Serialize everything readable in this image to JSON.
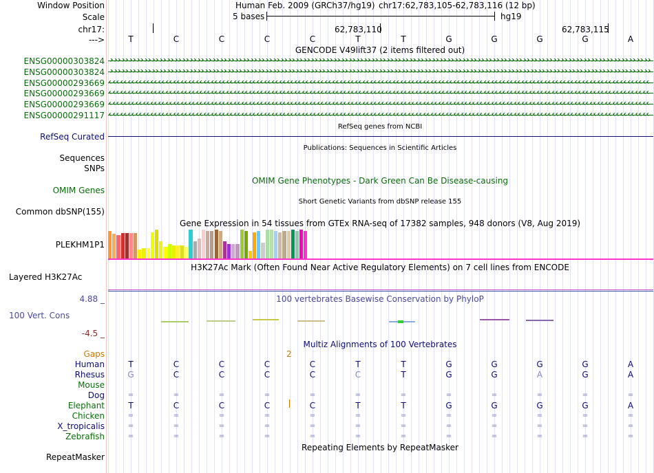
{
  "header": {
    "window_position_label": "Window Position",
    "scale_label": "Scale",
    "chrom_label": "chr17:",
    "arrow_label": "--->",
    "assembly": "Human Feb. 2009 (GRCh37/hg19)",
    "position": "chr17:62,783,105-62,783,116 (12 bp)",
    "scale_text": "5 bases",
    "scale_db": "hg19",
    "coord_1": "62,783,110",
    "coord_2": "62,783,115"
  },
  "sequence": [
    "T",
    "C",
    "C",
    "C",
    "C",
    "T",
    "T",
    "G",
    "G",
    "G",
    "G",
    "A"
  ],
  "gencode": {
    "title": "GENCODE V49lift37 (2 items filtered out)",
    "genes": [
      {
        "id": "ENSG00000303824",
        "strand": "+"
      },
      {
        "id": "ENSG00000303824",
        "strand": "+"
      },
      {
        "id": "ENSG00000293669",
        "strand": "-"
      },
      {
        "id": "ENSG00000293669",
        "strand": "-"
      },
      {
        "id": "ENSG00000293669",
        "strand": "-"
      },
      {
        "id": "ENSG00000291117",
        "strand": "-"
      }
    ]
  },
  "tracks": {
    "refseq_title": "RefSeq genes from NCBI",
    "refseq_label": "RefSeq Curated",
    "publications_title": "Publications: Sequences in Scientific Articles",
    "sequences_label": "Sequences",
    "snps_label": "SNPs",
    "omim_title": "OMIM Gene Phenotypes - Dark Green Can Be Disease-causing",
    "omim_label": "OMIM Genes",
    "dbsnp_title": "Short Genetic Variants from dbSNP release 155",
    "dbsnp_label": "Common dbSNP(155)",
    "gtex_title": "Gene Expression in 54 tissues from GTEx RNA-seq of 17382 samples, 948 donors (V8, Aug 2019)",
    "gtex_label": "PLEKHM1P1",
    "h3k27_title": "H3K27Ac Mark (Often Found Near Active Regulatory Elements) on 7 cell lines from ENCODE",
    "h3k27_label": "Layered H3K27Ac",
    "phylop_title": "100 vertebrates Basewise Conservation by PhyloP",
    "phylop_label": "100 Vert. Cons",
    "phylop_max": "4.88 _",
    "phylop_min": "-4.5 _",
    "multiz_title": "Multiz Alignments of 100 Vertebrates",
    "gaps_label": "Gaps",
    "gaps_value": "2",
    "repeat_title": "Repeating Elements by RepeatMasker",
    "repeat_label": "RepeatMasker"
  },
  "gtex_bars": [
    {
      "color": "#ff9933",
      "level": 0.95
    },
    {
      "color": "#ffaa55",
      "level": 0.85
    },
    {
      "color": "#ff6666",
      "level": 0.8
    },
    {
      "color": "#cc3333",
      "level": 0.88
    },
    {
      "color": "#993333",
      "level": 0.88
    },
    {
      "color": "#ff8888",
      "level": 0.88
    },
    {
      "color": "#cc9966",
      "level": 0.88
    },
    {
      "color": "#ffee00",
      "level": 0.3
    },
    {
      "color": "#eeee00",
      "level": 0.35
    },
    {
      "color": "#ffff33",
      "level": 0.35
    },
    {
      "color": "#eeff00",
      "level": 0.9
    },
    {
      "color": "#dddd00",
      "level": 1.0
    },
    {
      "color": "#eeee22",
      "level": 0.6
    },
    {
      "color": "#ffff00",
      "level": 0.4
    },
    {
      "color": "#ccff00",
      "level": 0.5
    },
    {
      "color": "#eeee00",
      "level": 0.45
    },
    {
      "color": "#ffee33",
      "level": 0.45
    },
    {
      "color": "#dddd22",
      "level": 0.45
    },
    {
      "color": "#ffff66",
      "level": 0.4
    },
    {
      "color": "#33cccc",
      "level": 1.0
    },
    {
      "color": "#aaaaaa",
      "level": 0.6
    },
    {
      "color": "#ddbbbb",
      "level": 0.7
    },
    {
      "color": "#ffcccc",
      "level": 1.0
    },
    {
      "color": "#ccaa99",
      "level": 0.95
    },
    {
      "color": "#bb9988",
      "level": 0.95
    },
    {
      "color": "#996633",
      "level": 1.0
    },
    {
      "color": "#ccaa88",
      "level": 0.95
    },
    {
      "color": "#aa3399",
      "level": 0.6
    },
    {
      "color": "#9933cc",
      "level": 0.5
    },
    {
      "color": "#ccaacc",
      "level": 0.5
    },
    {
      "color": "#bb99bb",
      "level": 0.5
    },
    {
      "color": "#99cc33",
      "level": 1.0
    },
    {
      "color": "#77aa00",
      "level": 0.95
    },
    {
      "color": "#ffcc00",
      "level": 0.25
    },
    {
      "color": "#ffaa00",
      "level": 0.9
    },
    {
      "color": "#66ccff",
      "level": 0.95
    },
    {
      "color": "#cccccc",
      "level": 0.55
    },
    {
      "color": "#aaddaa",
      "level": 1.0
    },
    {
      "color": "#bbddaa",
      "level": 1.0
    },
    {
      "color": "#aaccee",
      "level": 0.95
    },
    {
      "color": "#ccbbaa",
      "level": 0.9
    },
    {
      "color": "#bbaa88",
      "level": 0.95
    },
    {
      "color": "#ddccaa",
      "level": 0.95
    },
    {
      "color": "#009955",
      "level": 1.0
    },
    {
      "color": "#88ccaa",
      "level": 0.95
    },
    {
      "color": "#ff00bb",
      "level": 1.0
    },
    {
      "color": "#ff33cc",
      "level": 0.95
    }
  ],
  "multiz": [
    {
      "species": "Human",
      "color": "#0c0c78",
      "bases": [
        "T",
        "C",
        "C",
        "C",
        "C",
        "T",
        "T",
        "G",
        "G",
        "G",
        "G",
        "A"
      ]
    },
    {
      "species": "Rhesus",
      "color": "#0c0c78",
      "bases": [
        "G",
        "C",
        "C",
        "C",
        "C",
        "C",
        "T",
        "G",
        "G",
        "A",
        "G",
        "A"
      ]
    },
    {
      "species": "Mouse",
      "color": "#0a6d0a",
      "bases": [
        "",
        "",
        "",
        "",
        "",
        "",
        "",
        "",
        "",
        "",
        "",
        ""
      ]
    },
    {
      "species": "Dog",
      "color": "#0c0c78",
      "bases": [
        "=",
        "=",
        "=",
        "=",
        "=",
        "=",
        "=",
        "=",
        "=",
        "=",
        "=",
        "="
      ]
    },
    {
      "species": "Elephant",
      "color": "#0a6d0a",
      "bases": [
        "T",
        "C",
        "C",
        "C",
        "C",
        "T",
        "T",
        "G",
        "G",
        "G",
        "G",
        "A"
      ]
    },
    {
      "species": "Chicken",
      "color": "#0a6d0a",
      "bases": [
        "=",
        "=",
        "=",
        "=",
        "=",
        "=",
        "=",
        "=",
        "=",
        "=",
        "=",
        "="
      ]
    },
    {
      "species": "X_tropicalis",
      "color": "#0c0c78",
      "bases": [
        "=",
        "=",
        "=",
        "=",
        "=",
        "=",
        "=",
        "=",
        "=",
        "=",
        "=",
        "="
      ]
    },
    {
      "species": "Zebrafish",
      "color": "#0a6d0a",
      "bases": [
        "=",
        "=",
        "=",
        "=",
        "=",
        "=",
        "=",
        "=",
        "=",
        "=",
        "=",
        "="
      ]
    }
  ],
  "colors": {
    "gene_green": "#0a6d0a",
    "navy": "#0c0c78",
    "gaps_orange": "#cc7a00",
    "magenta": "#ff33cc",
    "grid_blue": "#dde0ff"
  }
}
